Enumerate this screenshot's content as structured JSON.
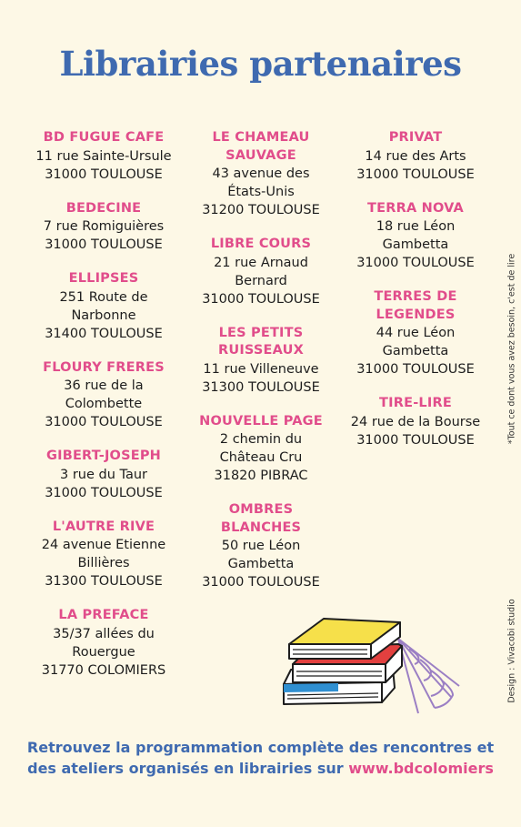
{
  "title": "Librairies partenaires",
  "columns": [
    [
      {
        "name": "BD FUGUE CAFE",
        "lines": [
          "11 rue Sainte-Ursule",
          "31000 TOULOUSE"
        ]
      },
      {
        "name": "BEDECINE",
        "lines": [
          "7 rue Romiguières",
          "31000 TOULOUSE"
        ]
      },
      {
        "name": "ELLIPSES",
        "lines": [
          "251 Route de",
          "Narbonne",
          "31400 TOULOUSE"
        ]
      },
      {
        "name": "FLOURY FRERES",
        "lines": [
          "36 rue de la",
          "Colombette",
          "31000 TOULOUSE"
        ]
      },
      {
        "name": "GIBERT-JOSEPH",
        "lines": [
          "3 rue du Taur",
          "31000 TOULOUSE"
        ]
      },
      {
        "name": "L'AUTRE RIVE",
        "lines": [
          "24 avenue Etienne",
          "Billières",
          "31300 TOULOUSE"
        ]
      },
      {
        "name": "LA PREFACE",
        "lines": [
          "35/37 allées du",
          "Rouergue",
          "31770 COLOMIERS"
        ]
      }
    ],
    [
      {
        "name_lines": [
          "LE CHAMEAU",
          "SAUVAGE"
        ],
        "lines": [
          "43 avenue des",
          "États-Unis",
          "31200 TOULOUSE"
        ]
      },
      {
        "name_lines": [
          "LIBRE COURS"
        ],
        "lines": [
          "21 rue Arnaud",
          "Bernard",
          "31000 TOULOUSE"
        ]
      },
      {
        "name_lines": [
          "LES PETITS",
          "RUISSEAUX"
        ],
        "lines": [
          "11 rue Villeneuve",
          "31300 TOULOUSE"
        ]
      },
      {
        "name_lines": [
          "NOUVELLE PAGE"
        ],
        "lines": [
          "2 chemin du",
          "Château Cru",
          "31820 PIBRAC"
        ]
      },
      {
        "name_lines": [
          "OMBRES",
          "BLANCHES"
        ],
        "lines": [
          "50 rue Léon",
          "Gambetta",
          "31000 TOULOUSE"
        ]
      }
    ],
    [
      {
        "name_lines": [
          "PRIVAT"
        ],
        "lines": [
          "14 rue des Arts",
          "31000 TOULOUSE"
        ]
      },
      {
        "name_lines": [
          "TERRA NOVA"
        ],
        "lines": [
          "18 rue Léon",
          "Gambetta",
          "31000 TOULOUSE"
        ]
      },
      {
        "name_lines": [
          "TERRES DE",
          "LEGENDES"
        ],
        "lines": [
          "44 rue Léon",
          "Gambetta",
          "31000 TOULOUSE"
        ]
      },
      {
        "name_lines": [
          "TIRE-LIRE"
        ],
        "lines": [
          "24 rue de la Bourse",
          "31000 TOULOUSE"
        ]
      }
    ]
  ],
  "side_note": "*Tout ce dont vous avez besoin, c'est de lire",
  "side_credit": "Design : Vivacobi studio",
  "footer": {
    "line1": "Retrouvez la programmation complète des rencontres et",
    "line2_text": "des ateliers organisés en librairies sur ",
    "link": "www.bdcolomiers"
  },
  "colors": {
    "title": "#3f6ab0",
    "shop_name": "#e14d8b",
    "background": "#fdf8e6"
  }
}
